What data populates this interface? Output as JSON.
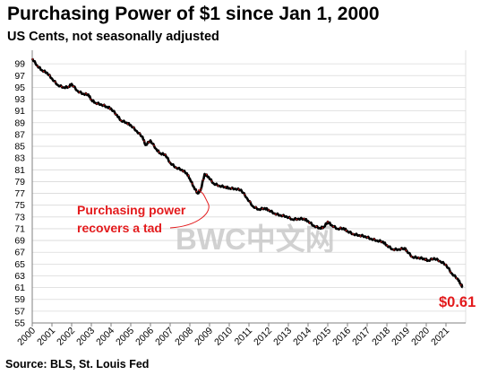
{
  "title": "Purchasing  Power of $1 since Jan 1, 2000",
  "subtitle": "US Cents, not seasonally adjusted",
  "source": "Source: BLS, St. Louis Fed",
  "watermark": "BWC中文网",
  "colors": {
    "line": "#000000",
    "highlight": "#e31a1c",
    "grid": "#d9d9d9",
    "annotation": "#e31a1c"
  },
  "chart_data": {
    "type": "line",
    "title": "Purchasing  Power of $1 since Jan 1, 2000",
    "subtitle": "US Cents, not seasonally adjusted",
    "xlabel": "",
    "ylabel": "",
    "ylim": [
      55,
      101
    ],
    "xlim": [
      2000,
      2022.0
    ],
    "grid": true,
    "legend": "none",
    "y_ticks": [
      55,
      57,
      59,
      61,
      63,
      65,
      67,
      69,
      71,
      73,
      75,
      77,
      79,
      81,
      83,
      85,
      87,
      89,
      91,
      93,
      95,
      97,
      99
    ],
    "x_ticks": [
      2000,
      2001,
      2002,
      2003,
      2004,
      2005,
      2006,
      2007,
      2008,
      2009,
      2010,
      2011,
      2012,
      2013,
      2014,
      2015,
      2016,
      2017,
      2018,
      2019,
      2020,
      2021
    ],
    "series": [
      {
        "values_x": [
          2000.0,
          2000.25,
          2000.5,
          2000.75,
          2001.0,
          2001.3,
          2001.6,
          2001.85,
          2002.0,
          2002.3,
          2002.6,
          2002.85,
          2003.0,
          2003.2,
          2003.5,
          2003.8,
          2004.0,
          2004.3,
          2004.5,
          2004.8,
          2005.0,
          2005.3,
          2005.6,
          2005.75,
          2006.0,
          2006.3,
          2006.5,
          2006.75,
          2007.0,
          2007.3,
          2007.6,
          2007.85,
          2008.0,
          2008.2,
          2008.4,
          2008.55,
          2008.75,
          2008.95,
          2009.2,
          2009.5,
          2009.8,
          2010.0,
          2010.3,
          2010.6,
          2010.9,
          2011.2,
          2011.5,
          2011.8,
          2012.0,
          2012.3,
          2012.6,
          2012.9,
          2013.2,
          2013.5,
          2013.8,
          2014.0,
          2014.3,
          2014.6,
          2014.8,
          2015.0,
          2015.2,
          2015.5,
          2015.8,
          2016.0,
          2016.3,
          2016.6,
          2016.9,
          2017.2,
          2017.5,
          2017.8,
          2018.0,
          2018.3,
          2018.6,
          2018.9,
          2019.0,
          2019.3,
          2019.6,
          2019.9,
          2020.1,
          2020.4,
          2020.7,
          2021.0,
          2021.3,
          2021.6,
          2021.75,
          2021.85
        ],
        "values": [
          99.9,
          98.7,
          97.9,
          97.5,
          96.5,
          95.4,
          95.0,
          95.1,
          95.6,
          94.4,
          93.9,
          93.8,
          92.9,
          92.4,
          92.1,
          91.7,
          91.4,
          90.3,
          89.4,
          89.0,
          88.6,
          87.6,
          86.6,
          85.2,
          86.0,
          84.5,
          83.8,
          83.6,
          82.2,
          81.4,
          81.0,
          80.4,
          79.5,
          78.1,
          77.0,
          77.6,
          80.3,
          79.8,
          78.7,
          78.3,
          78.1,
          77.9,
          77.8,
          77.6,
          76.2,
          74.8,
          74.3,
          74.5,
          74.2,
          73.6,
          73.3,
          73.1,
          72.6,
          72.7,
          72.7,
          72.3,
          71.5,
          71.1,
          71.3,
          72.2,
          71.6,
          71.0,
          71.1,
          70.6,
          70.1,
          69.9,
          69.7,
          69.3,
          69.0,
          68.8,
          68.2,
          67.5,
          67.5,
          67.7,
          67.3,
          66.2,
          66.1,
          65.9,
          65.6,
          66.0,
          65.5,
          64.9,
          63.4,
          62.5,
          61.6,
          61.1
        ],
        "highlight_note": "red dotted overlay on the line"
      }
    ],
    "annotations": [
      {
        "text_lines": [
          "Purchasing power",
          "recovers a tad"
        ],
        "x": 2008.6,
        "y": 78.0
      },
      {
        "text": "$0.61",
        "x": 2021.85,
        "y": 61
      }
    ]
  }
}
